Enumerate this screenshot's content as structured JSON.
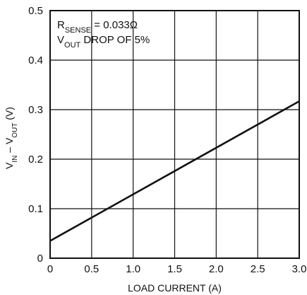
{
  "chart_data": {
    "type": "line",
    "xlabel": "LOAD CURRENT (A)",
    "ylabel_parts": [
      {
        "text": "V",
        "sub": false
      },
      {
        "text": "IN",
        "sub": true
      },
      {
        "text": " – V",
        "sub": false
      },
      {
        "text": "OUT",
        "sub": true
      },
      {
        "text": " (V)",
        "sub": false
      }
    ],
    "xlim": [
      0,
      3.0
    ],
    "ylim": [
      0,
      0.5
    ],
    "x_ticks": [
      0,
      0.5,
      1.0,
      1.5,
      2.0,
      2.5,
      3.0
    ],
    "x_tick_labels": [
      "0",
      "0.5",
      "1.0",
      "1.5",
      "2.0",
      "2.5",
      "3.0"
    ],
    "y_ticks": [
      0,
      0.1,
      0.2,
      0.3,
      0.4,
      0.5
    ],
    "y_tick_labels": [
      "0",
      "0.1",
      "0.2",
      "0.3",
      "0.4",
      "0.5"
    ],
    "grid": true,
    "series": [
      {
        "x": [
          0,
          3.0
        ],
        "y": [
          0.035,
          0.317
        ]
      }
    ],
    "annotations": [
      {
        "parts": [
          {
            "text": "R",
            "sub": false
          },
          {
            "text": "SENSE",
            "sub": true
          },
          {
            "text": " = 0.033Ω",
            "sub": false
          }
        ]
      },
      {
        "parts": [
          {
            "text": "V",
            "sub": false
          },
          {
            "text": "OUT",
            "sub": true
          },
          {
            "text": " DROP OF 5%",
            "sub": false
          }
        ]
      }
    ]
  }
}
